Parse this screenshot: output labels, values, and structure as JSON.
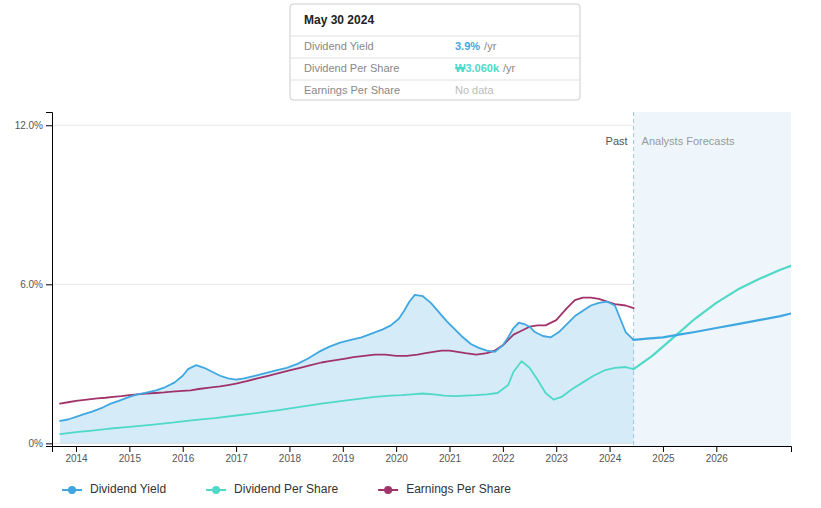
{
  "chart_data": {
    "type": "line",
    "xlim": [
      2013.55,
      2027.4
    ],
    "xticks": [
      2014,
      2015,
      2016,
      2017,
      2018,
      2019,
      2020,
      2021,
      2022,
      2023,
      2024,
      2025,
      2026
    ],
    "ylim": [
      -0.1,
      12.5
    ],
    "yticks": [
      {
        "value": 0,
        "label": "0%"
      },
      {
        "value": 6,
        "label": "6.0%"
      },
      {
        "value": 12,
        "label": "12.0%"
      }
    ],
    "grid": true,
    "series": [
      {
        "name": "Dividend Yield",
        "type": "area",
        "color": "#3FA7E1",
        "x": [
          2013.7,
          2013.85,
          2014.0,
          2014.15,
          2014.3,
          2014.5,
          2014.65,
          2014.8,
          2015.0,
          2015.15,
          2015.3,
          2015.5,
          2015.65,
          2015.85,
          2016.0,
          2016.1,
          2016.25,
          2016.4,
          2016.55,
          2016.7,
          2016.85,
          2017.0,
          2017.15,
          2017.35,
          2017.55,
          2017.75,
          2017.95,
          2018.15,
          2018.35,
          2018.55,
          2018.75,
          2018.95,
          2019.15,
          2019.35,
          2019.55,
          2019.75,
          2019.9,
          2020.05,
          2020.15,
          2020.25,
          2020.35,
          2020.5,
          2020.65,
          2020.8,
          2020.95,
          2021.1,
          2021.25,
          2021.4,
          2021.55,
          2021.7,
          2021.85,
          2022.0,
          2022.1,
          2022.2,
          2022.3,
          2022.4,
          2022.5,
          2022.6,
          2022.75,
          2022.9,
          2023.05,
          2023.2,
          2023.35,
          2023.5,
          2023.65,
          2023.8,
          2023.95,
          2024.1,
          2024.3,
          2024.45
        ],
        "values": [
          0.85,
          0.9,
          1.0,
          1.1,
          1.2,
          1.35,
          1.5,
          1.6,
          1.75,
          1.85,
          1.9,
          2.0,
          2.1,
          2.3,
          2.55,
          2.8,
          2.95,
          2.85,
          2.7,
          2.55,
          2.45,
          2.4,
          2.45,
          2.55,
          2.65,
          2.75,
          2.85,
          3.0,
          3.2,
          3.45,
          3.65,
          3.8,
          3.9,
          4.0,
          4.15,
          4.3,
          4.45,
          4.7,
          5.0,
          5.35,
          5.6,
          5.55,
          5.3,
          4.95,
          4.6,
          4.3,
          4.0,
          3.75,
          3.6,
          3.5,
          3.45,
          3.7,
          4.0,
          4.35,
          4.55,
          4.5,
          4.4,
          4.2,
          4.05,
          4.0,
          4.2,
          4.5,
          4.8,
          5.0,
          5.2,
          5.3,
          5.35,
          5.2,
          4.2,
          3.9
        ]
      },
      {
        "color": "#3FA7E1",
        "x": [
          2024.45,
          2024.7,
          2025.0,
          2025.3,
          2025.6,
          2026.0,
          2026.4,
          2026.8,
          2027.2,
          2027.4
        ],
        "values": [
          3.9,
          3.95,
          4.0,
          4.1,
          4.2,
          4.35,
          4.5,
          4.65,
          4.8,
          4.9
        ]
      },
      {
        "name": "Dividend Per Share",
        "color": "#50D8C8",
        "x": [
          2013.7,
          2014.0,
          2014.3,
          2014.6,
          2015.0,
          2015.4,
          2015.8,
          2016.2,
          2016.6,
          2017.0,
          2017.4,
          2017.8,
          2018.2,
          2018.6,
          2019.0,
          2019.3,
          2019.6,
          2019.9,
          2020.1,
          2020.3,
          2020.5,
          2020.7,
          2020.9,
          2021.1,
          2021.3,
          2021.5,
          2021.7,
          2021.9,
          2022.1,
          2022.2,
          2022.35,
          2022.5,
          2022.65,
          2022.8,
          2022.95,
          2023.1,
          2023.3,
          2023.5,
          2023.7,
          2023.9,
          2024.1,
          2024.3,
          2024.45
        ],
        "values": [
          0.35,
          0.42,
          0.48,
          0.55,
          0.62,
          0.7,
          0.78,
          0.88,
          0.95,
          1.05,
          1.15,
          1.25,
          1.38,
          1.5,
          1.6,
          1.68,
          1.75,
          1.8,
          1.82,
          1.85,
          1.88,
          1.85,
          1.8,
          1.78,
          1.8,
          1.82,
          1.85,
          1.9,
          2.2,
          2.7,
          3.1,
          2.85,
          2.4,
          1.9,
          1.65,
          1.75,
          2.05,
          2.3,
          2.55,
          2.75,
          2.85,
          2.88,
          2.8
        ]
      },
      {
        "color": "#50D8C8",
        "x": [
          2024.45,
          2024.8,
          2025.2,
          2025.6,
          2026.0,
          2026.4,
          2026.8,
          2027.2,
          2027.4
        ],
        "values": [
          2.8,
          3.3,
          4.0,
          4.7,
          5.3,
          5.8,
          6.2,
          6.55,
          6.7
        ]
      },
      {
        "name": "Earnings Per Share",
        "color": "#A0336A",
        "x": [
          2013.7,
          2013.85,
          2014.0,
          2014.2,
          2014.4,
          2014.55,
          2014.7,
          2014.85,
          2015.0,
          2015.15,
          2015.3,
          2015.5,
          2015.65,
          2015.8,
          2016.0,
          2016.15,
          2016.3,
          2016.5,
          2016.7,
          2016.85,
          2017.0,
          2017.2,
          2017.4,
          2017.6,
          2017.8,
          2018.0,
          2018.2,
          2018.4,
          2018.6,
          2018.75,
          2018.9,
          2019.05,
          2019.2,
          2019.4,
          2019.6,
          2019.8,
          2020.0,
          2020.2,
          2020.4,
          2020.55,
          2020.7,
          2020.85,
          2021.0,
          2021.15,
          2021.3,
          2021.5,
          2021.7,
          2021.85,
          2022.0,
          2022.1,
          2022.2,
          2022.35,
          2022.5,
          2022.65,
          2022.8,
          2023.0,
          2023.2,
          2023.35,
          2023.5,
          2023.65,
          2023.8,
          2023.95,
          2024.1,
          2024.3,
          2024.45
        ],
        "values": [
          1.5,
          1.55,
          1.6,
          1.65,
          1.7,
          1.72,
          1.75,
          1.78,
          1.82,
          1.85,
          1.88,
          1.9,
          1.92,
          1.95,
          1.98,
          2.0,
          2.05,
          2.1,
          2.15,
          2.2,
          2.25,
          2.35,
          2.45,
          2.55,
          2.65,
          2.75,
          2.85,
          2.95,
          3.05,
          3.1,
          3.15,
          3.2,
          3.25,
          3.3,
          3.35,
          3.35,
          3.3,
          3.3,
          3.35,
          3.4,
          3.45,
          3.5,
          3.5,
          3.45,
          3.4,
          3.35,
          3.4,
          3.5,
          3.7,
          3.9,
          4.1,
          4.25,
          4.4,
          4.45,
          4.45,
          4.65,
          5.1,
          5.4,
          5.5,
          5.5,
          5.45,
          5.35,
          5.25,
          5.2,
          5.1
        ]
      }
    ],
    "annotations": [
      {
        "text": "Past",
        "x": 2024.45
      },
      {
        "text": "Analysts Forecasts",
        "x": 2024.45
      },
      {
        "title": "May 30 2024",
        "rows": [
          {
            "label": "Dividend Yield",
            "value": "3.9%",
            "unit": "/yr"
          },
          {
            "label": "Dividend Per Share",
            "value": "₩3.060k",
            "unit": "/yr"
          },
          {
            "label": "Earnings Per Share",
            "value": "No data"
          }
        ]
      }
    ]
  }
}
